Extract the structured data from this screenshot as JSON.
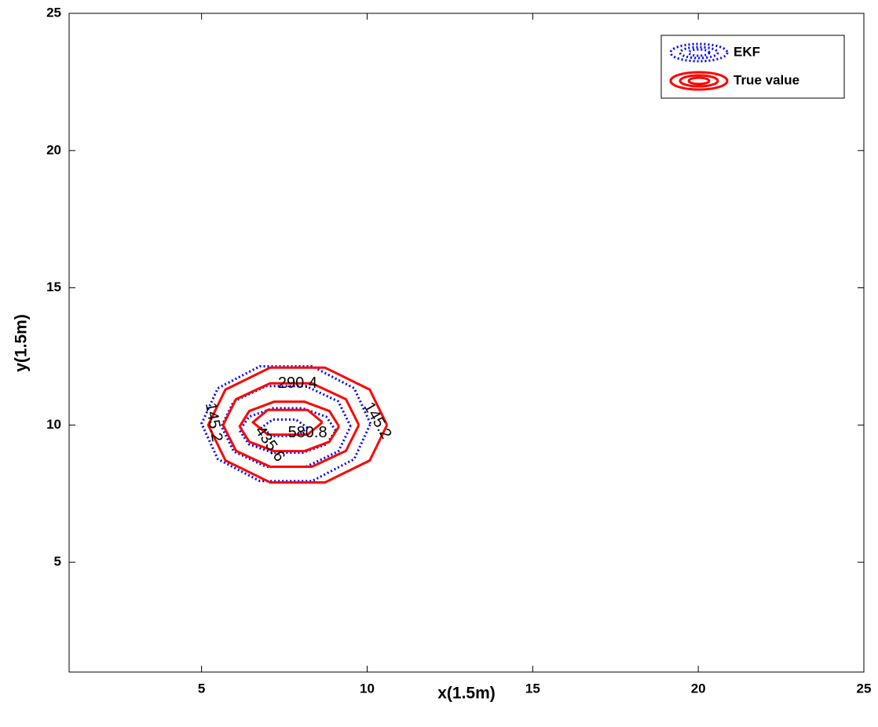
{
  "chart_data": {
    "type": "contour",
    "xlabel": "x(1.5m)",
    "ylabel": "y(1.5m)",
    "xlim": [
      1,
      25
    ],
    "ylim": [
      1,
      25
    ],
    "xticks": [
      5,
      10,
      15,
      20,
      25
    ],
    "yticks": [
      5,
      10,
      15,
      20,
      25
    ],
    "grid": false,
    "legend_position": "upper-right",
    "series": [
      {
        "name": "EKF",
        "color": "#0000ff",
        "line_style": "dotted",
        "contours": [
          {
            "x": [
              10.1,
              9.61,
              8.34,
              6.76,
              5.49,
              5.0,
              5.49,
              6.76,
              8.34,
              9.61,
              10.1
            ],
            "y": [
              10.05,
              11.34,
              12.14,
              12.14,
              11.34,
              10.05,
              8.76,
              7.96,
              7.96,
              8.76,
              10.05
            ]
          },
          {
            "x": [
              9.5,
              9.13,
              8.15,
              6.95,
              5.97,
              5.6,
              5.97,
              6.95,
              8.15,
              9.13,
              9.5
            ],
            "y": [
              9.95,
              10.86,
              11.42,
              11.42,
              10.86,
              9.95,
              9.04,
              8.48,
              8.48,
              9.04,
              9.95
            ]
          },
          {
            "x": [
              9.05,
              8.77,
              8.05,
              7.15,
              6.43,
              6.15,
              6.43,
              7.15,
              8.05,
              8.77,
              9.05
            ],
            "y": [
              9.8,
              10.3,
              10.61,
              10.61,
              10.3,
              9.8,
              9.3,
              8.99,
              8.99,
              9.3,
              9.8
            ]
          },
          {
            "x": [
              8.2,
              7.85,
              7.15,
              6.8,
              7.15,
              7.85,
              8.2
            ],
            "y": [
              9.9,
              10.2,
              10.2,
              9.9,
              9.6,
              9.6,
              9.9
            ]
          }
        ]
      },
      {
        "name": "True value",
        "color": "#ff0000",
        "line_style": "solid",
        "contours": [
          {
            "x": [
              10.6,
              10.08,
              8.73,
              7.07,
              5.72,
              5.2,
              5.72,
              7.07,
              8.73,
              10.08,
              10.6
            ],
            "y": [
              10.0,
              11.29,
              12.09,
              12.09,
              11.29,
              10.0,
              8.71,
              7.91,
              7.91,
              8.71,
              10.0
            ]
          },
          {
            "x": [
              9.75,
              9.36,
              8.33,
              7.07,
              6.04,
              5.65,
              6.04,
              7.07,
              8.33,
              9.36,
              9.75
            ],
            "y": [
              10.0,
              10.94,
              11.52,
              11.52,
              10.94,
              10.0,
              9.06,
              8.48,
              8.48,
              9.06,
              10.0
            ]
          },
          {
            "x": [
              9.15,
              8.86,
              8.11,
              7.19,
              6.44,
              6.15,
              6.44,
              7.19,
              8.11,
              8.86,
              9.15
            ],
            "y": [
              9.95,
              10.51,
              10.85,
              10.85,
              10.51,
              9.95,
              9.39,
              9.05,
              9.05,
              9.39,
              9.95
            ]
          },
          {
            "x": [
              8.65,
              8.2,
              7.0,
              6.55,
              7.0,
              8.2,
              8.65
            ],
            "y": [
              10.1,
              10.55,
              10.55,
              10.1,
              9.65,
              9.65,
              10.1
            ]
          }
        ]
      }
    ],
    "contour_labels": [
      {
        "value": 145.2,
        "x": 5.35,
        "y": 10.1
      },
      {
        "value": 290.4,
        "x": 7.9,
        "y": 11.5
      },
      {
        "value": 435.6,
        "x": 7.05,
        "y": 9.3
      },
      {
        "value": 580.8,
        "x": 8.2,
        "y": 9.7
      },
      {
        "value": 145.2,
        "x": 10.3,
        "y": 10.15
      }
    ]
  }
}
